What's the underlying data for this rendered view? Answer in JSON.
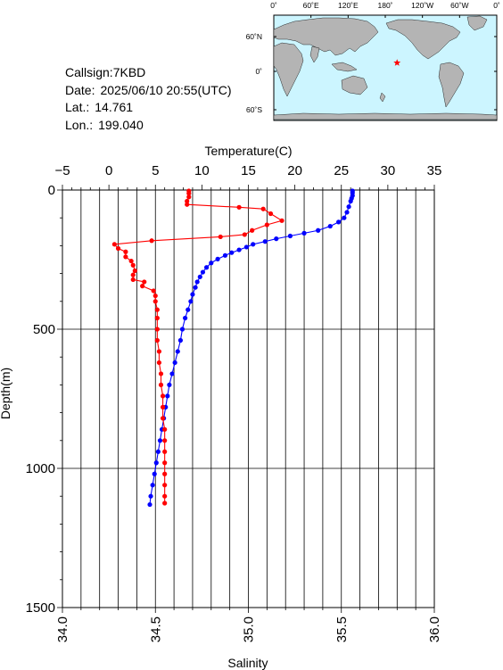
{
  "info": {
    "callsign_label": "Callsign:",
    "callsign": "7KBD",
    "date_label": "Date:",
    "date": "2025/06/10 20:55(UTC)",
    "lat_label": "Lat.:",
    "lat": "14.761",
    "lon_label": "Lon.:",
    "lon": "199.040"
  },
  "map": {
    "ocean_color": "#ccf5ff",
    "land_color": "#b4b4b4",
    "marker_color": "#ff0000",
    "x_labels": [
      "0˚",
      "60˚E",
      "120˚E",
      "180˚",
      "120˚W",
      "60˚W",
      "0˚"
    ],
    "y_labels": [
      "60˚N",
      "0˚",
      "60˚S"
    ]
  },
  "chart_data": {
    "type": "line",
    "xlabel_top": "Temperature(C)",
    "xlabel_bottom": "Salinity",
    "ylabel": "Depth(m)",
    "depth_range": [
      0,
      1500
    ],
    "depth_ticks": [
      "0",
      "500",
      "1000",
      "1500"
    ],
    "temperature_range": [
      -5,
      35
    ],
    "temperature_ticks": [
      "−5",
      "0",
      "5",
      "10",
      "15",
      "20",
      "25",
      "30",
      "35"
    ],
    "salinity_range": [
      34.0,
      36.0
    ],
    "salinity_ticks": [
      "34.0",
      "34.5",
      "35.0",
      "35.5",
      "36.0"
    ],
    "grid": true,
    "series": [
      {
        "quantity": "temperature",
        "color": "#0000ff",
        "points": [
          [
            26.2,
            3
          ],
          [
            26.2,
            10
          ],
          [
            26.2,
            20
          ],
          [
            26.1,
            30
          ],
          [
            26.0,
            40
          ],
          [
            25.8,
            60
          ],
          [
            25.6,
            80
          ],
          [
            25.3,
            100
          ],
          [
            24.7,
            115
          ],
          [
            23.8,
            130
          ],
          [
            22.5,
            145
          ],
          [
            21.0,
            155
          ],
          [
            19.5,
            165
          ],
          [
            18.0,
            175
          ],
          [
            16.8,
            185
          ],
          [
            15.5,
            195
          ],
          [
            14.8,
            205
          ],
          [
            14.0,
            215
          ],
          [
            13.2,
            225
          ],
          [
            12.5,
            235
          ],
          [
            11.7,
            248
          ],
          [
            11.0,
            262
          ],
          [
            10.5,
            278
          ],
          [
            10.1,
            295
          ],
          [
            9.8,
            312
          ],
          [
            9.5,
            330
          ],
          [
            9.3,
            350
          ],
          [
            9.0,
            375
          ],
          [
            8.8,
            400
          ],
          [
            8.5,
            430
          ],
          [
            8.2,
            460
          ],
          [
            7.9,
            500
          ],
          [
            7.7,
            540
          ],
          [
            7.4,
            580
          ],
          [
            7.1,
            620
          ],
          [
            6.8,
            660
          ],
          [
            6.5,
            700
          ],
          [
            6.3,
            740
          ],
          [
            6.1,
            780
          ],
          [
            5.9,
            820
          ],
          [
            5.7,
            860
          ],
          [
            5.5,
            900
          ],
          [
            5.3,
            940
          ],
          [
            5.1,
            980
          ],
          [
            4.9,
            1020
          ],
          [
            4.7,
            1060
          ],
          [
            4.5,
            1100
          ],
          [
            4.4,
            1130
          ]
        ]
      },
      {
        "quantity": "salinity",
        "color": "#ff0000",
        "points": [
          [
            34.68,
            3
          ],
          [
            34.68,
            12
          ],
          [
            34.68,
            25
          ],
          [
            34.67,
            40
          ],
          [
            34.67,
            52
          ],
          [
            34.95,
            62
          ],
          [
            35.08,
            68
          ],
          [
            35.12,
            85
          ],
          [
            35.18,
            110
          ],
          [
            35.1,
            125
          ],
          [
            35.02,
            145
          ],
          [
            34.98,
            160
          ],
          [
            34.85,
            168
          ],
          [
            34.48,
            182
          ],
          [
            34.28,
            195
          ],
          [
            34.3,
            210
          ],
          [
            34.34,
            222
          ],
          [
            34.34,
            240
          ],
          [
            34.37,
            255
          ],
          [
            34.38,
            270
          ],
          [
            34.39,
            290
          ],
          [
            34.38,
            305
          ],
          [
            34.38,
            322
          ],
          [
            34.44,
            330
          ],
          [
            34.43,
            345
          ],
          [
            34.49,
            362
          ],
          [
            34.5,
            380
          ],
          [
            34.5,
            400
          ],
          [
            34.51,
            430
          ],
          [
            34.51,
            460
          ],
          [
            34.51,
            500
          ],
          [
            34.51,
            540
          ],
          [
            34.52,
            580
          ],
          [
            34.52,
            620
          ],
          [
            34.53,
            660
          ],
          [
            34.53,
            700
          ],
          [
            34.54,
            740
          ],
          [
            34.54,
            780
          ],
          [
            34.54,
            820
          ],
          [
            34.55,
            860
          ],
          [
            34.55,
            900
          ],
          [
            34.55,
            940
          ],
          [
            34.55,
            980
          ],
          [
            34.55,
            1020
          ],
          [
            34.55,
            1060
          ],
          [
            34.55,
            1100
          ],
          [
            34.55,
            1125
          ]
        ]
      }
    ]
  }
}
